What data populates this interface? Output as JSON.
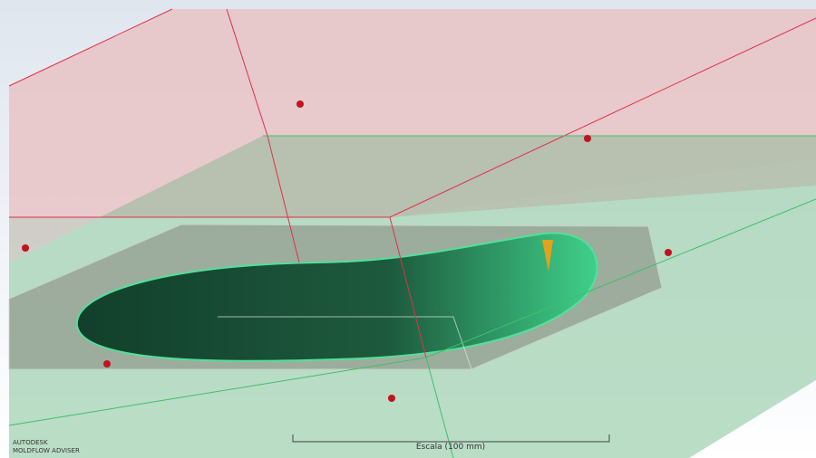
{
  "branding": {
    "company": "AUTODESK",
    "product": "MOLDFLOW ADVISER"
  },
  "scale_bar": {
    "label": "Escala (100 mm)"
  }
}
